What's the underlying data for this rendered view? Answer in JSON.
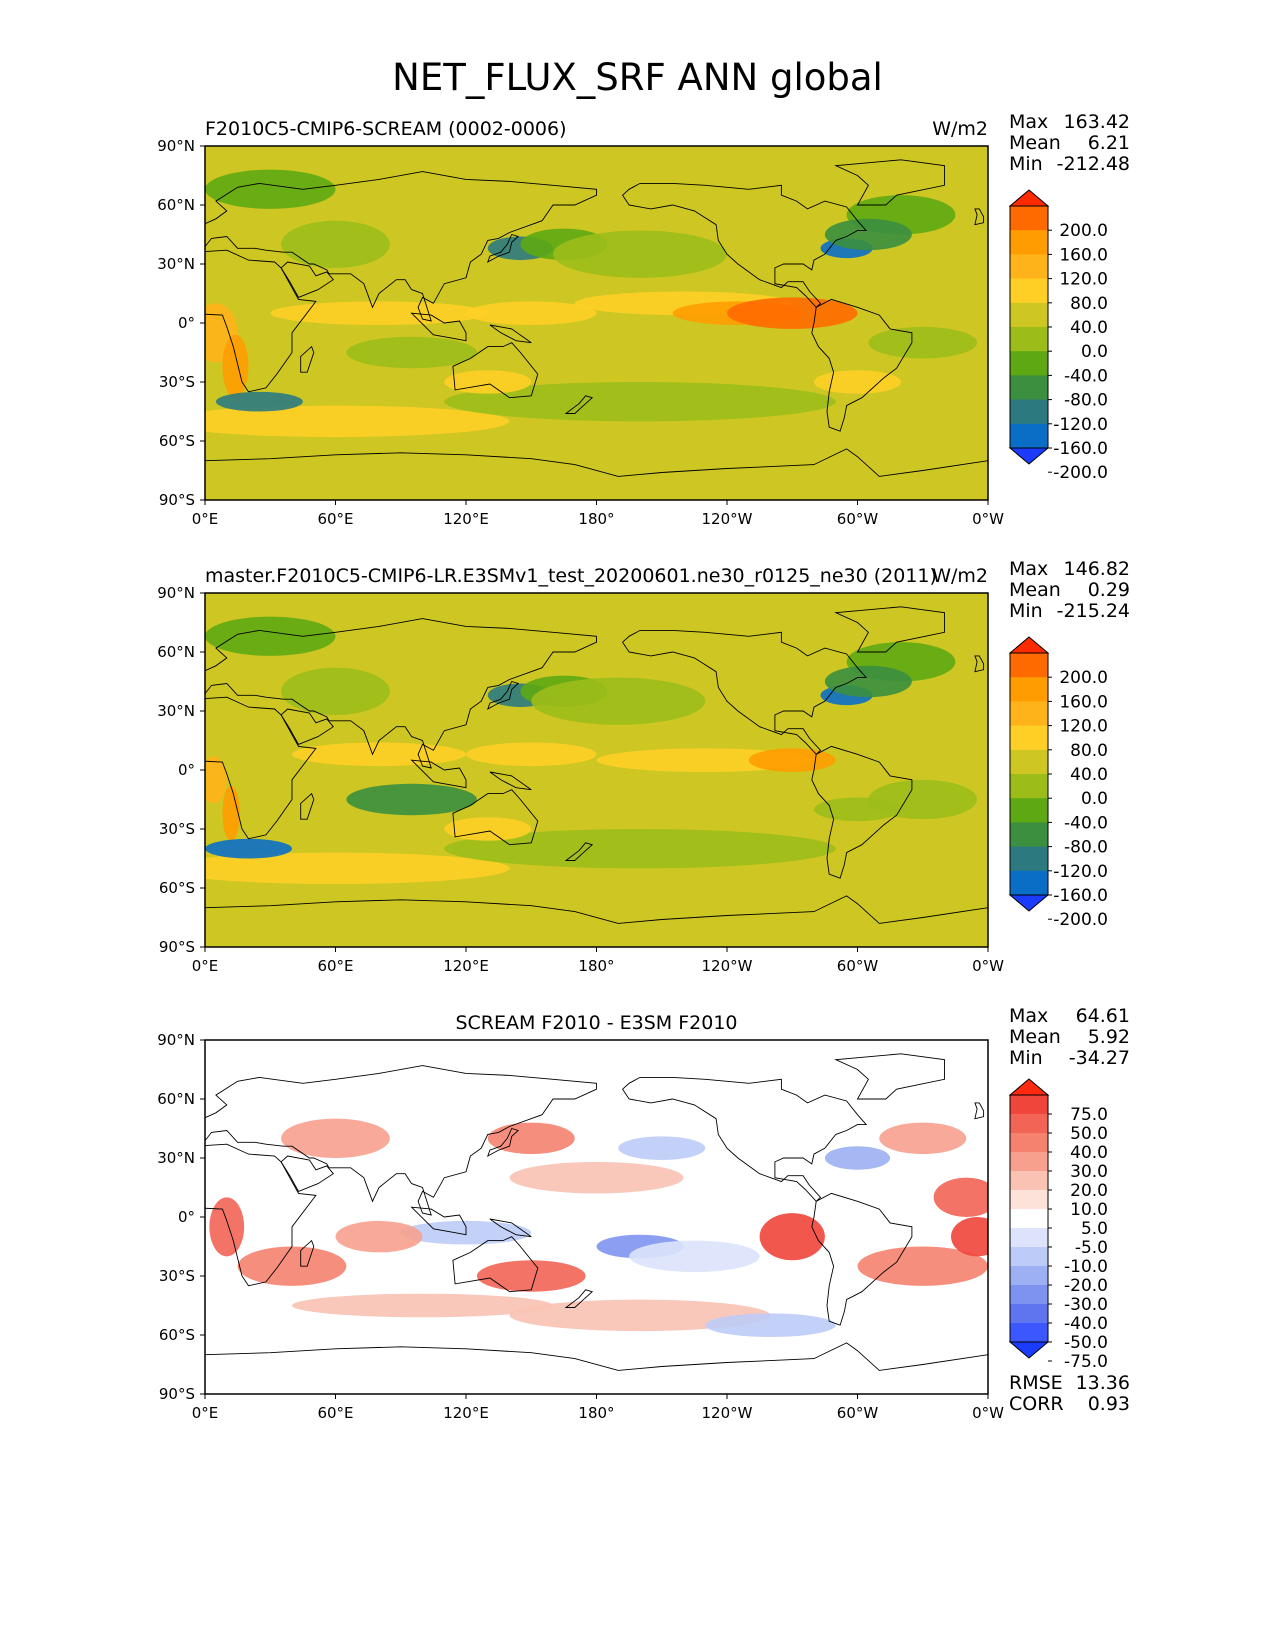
{
  "title": "NET_FLUX_SRF ANN global",
  "axes": {
    "lat_ticks": [
      "90°N",
      "60°N",
      "30°N",
      "0°",
      "30°S",
      "60°S",
      "90°S"
    ],
    "lon_ticks": [
      "0°E",
      "60°E",
      "120°E",
      "180°",
      "120°W",
      "60°W",
      "0°W"
    ]
  },
  "chart_data": [
    {
      "type": "heatmap",
      "title_left": "F2010C5-CMIP6-SCREAM (0002-0006)",
      "title_center": "",
      "units": "W/m2",
      "stats": [
        {
          "label": "Max",
          "value": "163.42"
        },
        {
          "label": "Mean",
          "value": "6.21"
        },
        {
          "label": "Min",
          "value": "-212.48"
        }
      ],
      "colorbar_labels": [
        "200.0",
        "160.0",
        "120.0",
        "80.0",
        "40.0",
        "0.0",
        "-40.0",
        "-80.0",
        "-120.0",
        "-160.0",
        "-200.0"
      ],
      "colorbar_colors": [
        "#ff2a00",
        "#ff6a00",
        "#ff9c00",
        "#ffb31a",
        "#ffcf26",
        "#cec723",
        "#9cbc1a",
        "#5ea813",
        "#3b8f3f",
        "#2c7a80",
        "#0b6ec6",
        "#1b3cff"
      ],
      "xlim": [
        0,
        360
      ],
      "ylim": [
        -90,
        90
      ],
      "grid": false
    },
    {
      "type": "heatmap",
      "title_left": "master.F2010C5-CMIP6-LR.E3SMv1_test_20200601.ne30_r0125_ne30 (2011)",
      "title_center": "",
      "units": "W/m2",
      "stats": [
        {
          "label": "Max",
          "value": "146.82"
        },
        {
          "label": "Mean",
          "value": "0.29"
        },
        {
          "label": "Min",
          "value": "-215.24"
        }
      ],
      "colorbar_labels": [
        "200.0",
        "160.0",
        "120.0",
        "80.0",
        "40.0",
        "0.0",
        "-40.0",
        "-80.0",
        "-120.0",
        "-160.0",
        "-200.0"
      ],
      "colorbar_colors": [
        "#ff2a00",
        "#ff6a00",
        "#ff9c00",
        "#ffb31a",
        "#ffcf26",
        "#cec723",
        "#9cbc1a",
        "#5ea813",
        "#3b8f3f",
        "#2c7a80",
        "#0b6ec6",
        "#1b3cff"
      ],
      "xlim": [
        0,
        360
      ],
      "ylim": [
        -90,
        90
      ],
      "grid": false
    },
    {
      "type": "heatmap",
      "title_left": "",
      "title_center": "SCREAM F2010 - E3SM F2010",
      "units": "",
      "stats": [
        {
          "label": "Max",
          "value": "64.61"
        },
        {
          "label": "Mean",
          "value": "5.92"
        },
        {
          "label": "Min",
          "value": "-34.27"
        }
      ],
      "bottom_stats": [
        {
          "label": "RMSE",
          "value": "13.36"
        },
        {
          "label": "CORR",
          "value": "0.93"
        }
      ],
      "colorbar_labels": [
        "75.0",
        "50.0",
        "40.0",
        "30.0",
        "20.0",
        "10.0",
        "5.0",
        "-5.0",
        "-10.0",
        "-20.0",
        "-30.0",
        "-40.0",
        "-50.0",
        "-75.0"
      ],
      "colorbar_colors": [
        "#ff2a10",
        "#f0453a",
        "#f26456",
        "#f5826f",
        "#f7a08e",
        "#fac2b3",
        "#fde2d9",
        "#ffffff",
        "#dce3fb",
        "#bccbf7",
        "#9cb0f3",
        "#7e93f0",
        "#5f75ef",
        "#3d57ff",
        "#1b3cff"
      ],
      "xlim": [
        0,
        360
      ],
      "ylim": [
        -90,
        90
      ],
      "grid": false
    }
  ]
}
